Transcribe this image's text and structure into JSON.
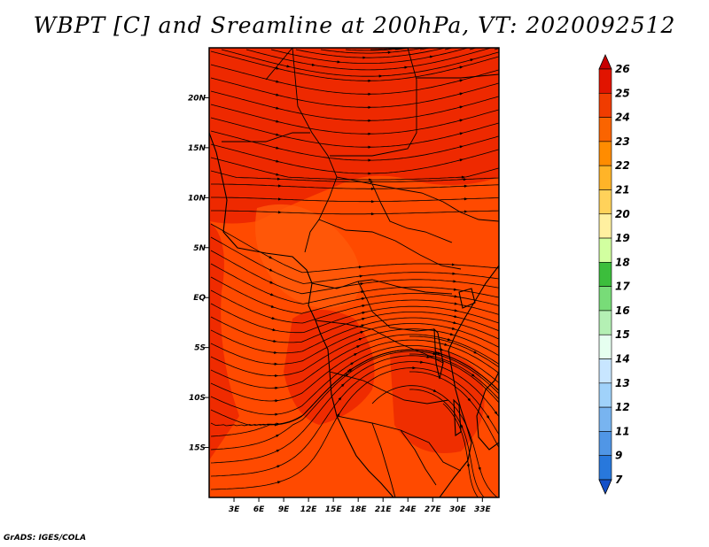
{
  "title": "WBPT [C] and Sreamline at 200hPa, VT: 2020092512",
  "credit": "GrADS: IGES/COLA",
  "map": {
    "lon_range": [
      0,
      35
    ],
    "lat_range": [
      -20,
      25
    ],
    "lon_ticks": [
      "3E",
      "6E",
      "9E",
      "12E",
      "15E",
      "18E",
      "21E",
      "24E",
      "27E",
      "30E",
      "33E"
    ],
    "lat_ticks": [
      "20N",
      "15N",
      "10N",
      "5N",
      "EQ",
      "5S",
      "10S",
      "15S"
    ],
    "field_color": "#ff4a00",
    "field_color_warm": "#ee2200"
  },
  "colorbar": {
    "labels": [
      "26",
      "25",
      "24",
      "23",
      "22",
      "21",
      "20",
      "19",
      "18",
      "17",
      "16",
      "15",
      "14",
      "13",
      "12",
      "11",
      "9",
      "7"
    ],
    "colors": [
      "#c80000",
      "#e11400",
      "#f03c00",
      "#fa6400",
      "#ff8c00",
      "#ffb428",
      "#ffd25a",
      "#fff0a0",
      "#d2ffa0",
      "#3cbe3c",
      "#78dc78",
      "#b4f0b4",
      "#e6fff0",
      "#c8e6ff",
      "#a0d2fa",
      "#78b4f0",
      "#5096e6",
      "#2878dc",
      "#1450c8"
    ]
  }
}
